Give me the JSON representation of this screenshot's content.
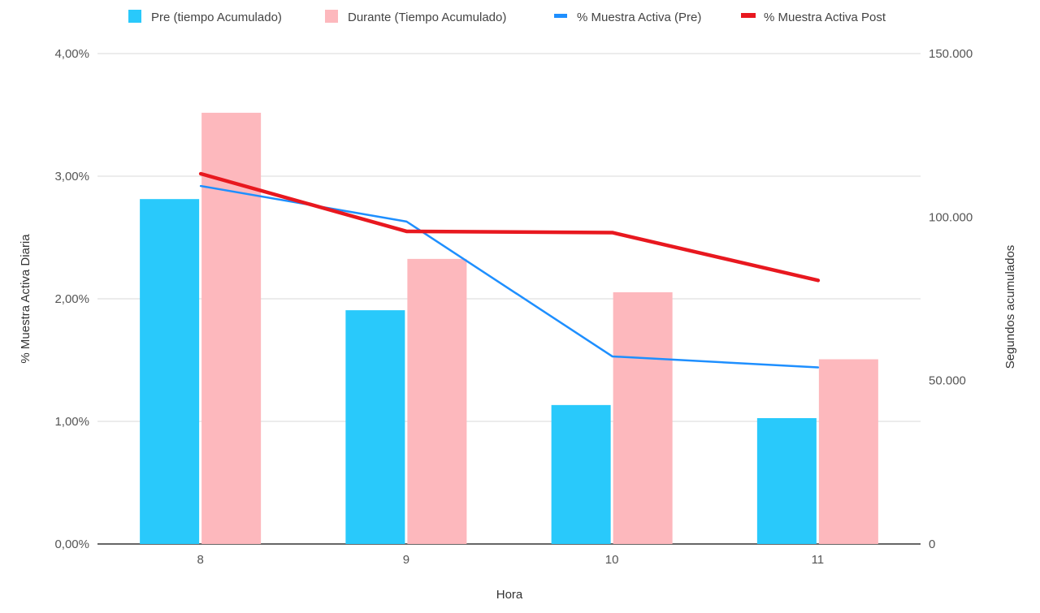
{
  "chart_data": {
    "type": "bar",
    "categories": [
      "8",
      "9",
      "10",
      "11"
    ],
    "xlabel": "Hora",
    "ylabel_left": "% Muestra Activa Diaria",
    "ylabel_right": "Segundos acumulados",
    "left_axis": {
      "range": [
        0,
        4
      ],
      "ticks": [
        0,
        1,
        2,
        3,
        4
      ],
      "tick_labels": [
        "0,00%",
        "1,00%",
        "2,00%",
        "3,00%",
        "4,00%"
      ]
    },
    "right_axis": {
      "range": [
        0,
        150000
      ],
      "ticks": [
        0,
        50000,
        100000,
        150000
      ],
      "tick_labels": [
        "0",
        "50.000",
        "100.000",
        "150.000"
      ]
    },
    "grid": true,
    "legend_position": "top",
    "bar_series": [
      {
        "name": "Pre (tiempo Acumulado)",
        "color": "#29c9fb",
        "axis": "right",
        "values": [
          105500,
          71500,
          42500,
          38500
        ]
      },
      {
        "name": "Durante (Tiempo Acumulado)",
        "color": "#fdb8bd",
        "axis": "right",
        "values": [
          131900,
          87200,
          77000,
          56500
        ]
      }
    ],
    "line_series": [
      {
        "name": "% Muestra Activa (Pre)",
        "color": "#1e8fff",
        "axis": "left",
        "values": [
          2.92,
          2.63,
          1.53,
          1.44
        ]
      },
      {
        "name": "% Muestra Activa Post",
        "color": "#e8181f",
        "axis": "left",
        "values": [
          3.02,
          2.55,
          2.54,
          2.15
        ]
      }
    ]
  }
}
